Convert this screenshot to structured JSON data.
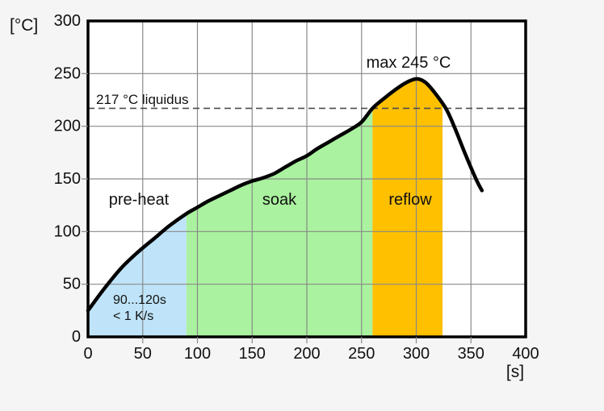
{
  "chart_data": {
    "type": "line",
    "xlabel": "[s]",
    "ylabel": "[°C]",
    "xlim": [
      0,
      400
    ],
    "ylim": [
      0,
      300
    ],
    "x_ticks": [
      0,
      50,
      100,
      150,
      200,
      250,
      300,
      350,
      400
    ],
    "y_ticks": [
      0,
      50,
      100,
      150,
      200,
      250,
      300
    ],
    "grid": true,
    "legend": "none",
    "liquidus": {
      "temp_c": 217,
      "label": "217 °C liquidus"
    },
    "peak": {
      "time_s": 300,
      "temp_c": 245,
      "label": "max 245 °C"
    },
    "preheat_note": {
      "lines": [
        "90...120s",
        "< 1 K/s"
      ]
    },
    "regions": [
      {
        "label": "pre-heat",
        "from_s": 0,
        "to_s": 90,
        "color": "#bfe4f9"
      },
      {
        "label": "soak",
        "from_s": 90,
        "to_s": 260,
        "color": "#aaf29f"
      },
      {
        "label": "reflow",
        "from_s": 260,
        "to_s": 324,
        "color": "#ffc000"
      }
    ],
    "curve_points": [
      [
        0,
        25
      ],
      [
        15,
        46
      ],
      [
        30,
        65
      ],
      [
        45,
        80
      ],
      [
        60,
        93
      ],
      [
        75,
        106
      ],
      [
        90,
        117
      ],
      [
        100,
        123
      ],
      [
        110,
        129
      ],
      [
        120,
        134
      ],
      [
        130,
        139
      ],
      [
        140,
        144
      ],
      [
        150,
        148
      ],
      [
        160,
        151
      ],
      [
        170,
        155
      ],
      [
        180,
        161
      ],
      [
        190,
        167
      ],
      [
        200,
        172
      ],
      [
        210,
        179
      ],
      [
        220,
        185
      ],
      [
        230,
        191
      ],
      [
        240,
        197
      ],
      [
        250,
        204
      ],
      [
        260,
        217
      ],
      [
        270,
        226
      ],
      [
        280,
        234
      ],
      [
        290,
        241
      ],
      [
        300,
        245
      ],
      [
        308,
        242
      ],
      [
        316,
        233
      ],
      [
        327,
        217
      ],
      [
        335,
        199
      ],
      [
        345,
        173
      ],
      [
        355,
        149
      ],
      [
        360,
        139
      ]
    ],
    "colors": {
      "curve": "#000000",
      "grid": "#8a8a8a",
      "frame": "#000000",
      "liquidus_line": "#4d4d4d",
      "background": "#f5f5f5",
      "plot_background": "#ffffff",
      "text": "#111111"
    }
  }
}
